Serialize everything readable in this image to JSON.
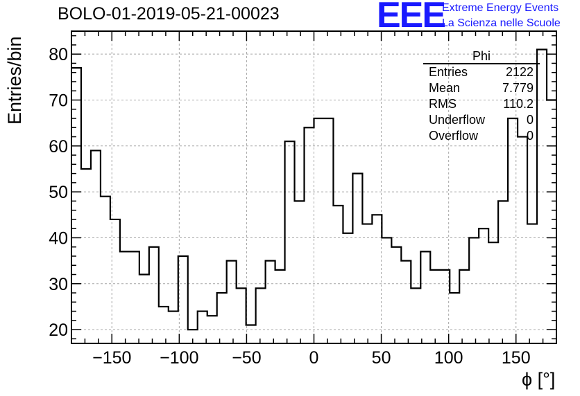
{
  "page": {
    "title": "BOLO-01-2019-05-21-00023",
    "logo_text": "EEE",
    "logo_line1": "Extreme Energy Events",
    "logo_line2": "La Scienza nelle Scuole"
  },
  "stats": {
    "name": "Phi",
    "rows": [
      {
        "label": "Entries",
        "value": "2122"
      },
      {
        "label": "Mean",
        "value": "7.779"
      },
      {
        "label": "RMS",
        "value": "110.2"
      },
      {
        "label": "Underflow",
        "value": "0"
      },
      {
        "label": "Overflow",
        "value": "0"
      }
    ]
  },
  "colors": {
    "logo": "#1a1aff",
    "line": "#000000",
    "grid": "#a6a6a6"
  },
  "chart_data": {
    "type": "histogram",
    "title": "BOLO-01-2019-05-21-00023",
    "xlabel": "ϕ [°]",
    "ylabel": "Entries/bin",
    "xlim": [
      -180,
      180
    ],
    "ylim": [
      17,
      85
    ],
    "grid": true,
    "x_ticks": [
      -150,
      -100,
      -50,
      0,
      50,
      100,
      150
    ],
    "y_ticks": [
      20,
      30,
      40,
      50,
      60,
      70,
      80
    ],
    "x_tick_labels": [
      "−150",
      "−100",
      "−50",
      "0",
      "50",
      "100",
      "150"
    ],
    "y_tick_labels": [
      "20",
      "30",
      "40",
      "50",
      "60",
      "70",
      "80"
    ],
    "bin_start": -180,
    "bin_width": 7.2,
    "values": [
      77,
      55,
      59,
      49,
      44,
      37,
      37,
      32,
      38,
      25,
      24,
      36,
      20,
      24,
      23,
      28,
      35,
      29,
      21,
      29,
      35,
      33,
      61,
      48,
      64,
      66,
      66,
      47,
      41,
      54,
      43,
      45,
      40,
      38,
      35,
      29,
      37,
      33,
      33,
      28,
      33,
      40,
      42,
      39,
      48,
      66,
      62,
      43,
      81,
      70
    ]
  }
}
